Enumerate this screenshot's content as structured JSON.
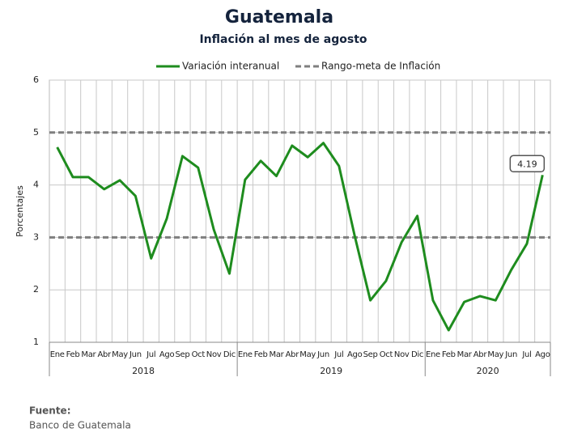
{
  "chart_data": {
    "type": "line",
    "title": "Guatemala",
    "subtitle": "Inflación al mes de agosto",
    "y_label": "Porcentajes",
    "categories": [
      "Ene",
      "Feb",
      "Mar",
      "Abr",
      "May",
      "Jun",
      "Jul",
      "Ago",
      "Sep",
      "Oct",
      "Nov",
      "Dic",
      "Ene",
      "Feb",
      "Mar",
      "Abr",
      "May",
      "Jun",
      "Jul",
      "Ago",
      "Sep",
      "Oct",
      "Nov",
      "Dic",
      "Ene",
      "Feb",
      "Mar",
      "Abr",
      "May",
      "Jun",
      "Jul",
      "Ago"
    ],
    "years": [
      "2018",
      "2019",
      "2020"
    ],
    "series": [
      {
        "name": "Variación interanual",
        "color": "#1e8c1e",
        "values": [
          4.72,
          4.15,
          4.15,
          3.92,
          4.09,
          3.79,
          2.6,
          3.36,
          4.55,
          4.33,
          3.15,
          2.31,
          4.1,
          4.46,
          4.17,
          4.75,
          4.53,
          4.8,
          4.36,
          3.03,
          1.8,
          2.17,
          2.91,
          3.41,
          1.8,
          1.23,
          1.77,
          1.88,
          1.8,
          2.38,
          2.88,
          4.19
        ]
      }
    ],
    "target_range": {
      "name": "Rango-meta de Inflación",
      "color": "#7f7f7f",
      "values": [
        3,
        5
      ]
    },
    "ylim": [
      1,
      6
    ],
    "yticks": [
      1,
      2,
      3,
      4,
      5,
      6
    ],
    "grid": true,
    "source_label": "Fuente:",
    "source": "Banco de Guatemala"
  }
}
